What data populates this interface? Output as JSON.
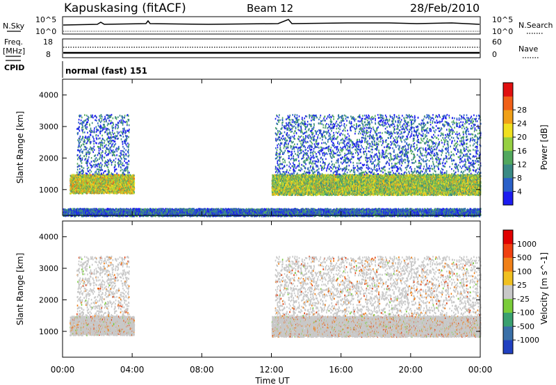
{
  "header": {
    "station": "Kapuskasing (fitACF)",
    "beam": "Beam 12",
    "date": "28/Feb/2010"
  },
  "param_panels": {
    "nsky_label": "N.Sky",
    "nsky_ticks": [
      "10^5",
      "10^0"
    ],
    "nsearch_label": "N.Search",
    "nsearch_ticks": [
      "10^5",
      "10^0"
    ],
    "freq_label_top": "Freq.",
    "freq_label_bot": "[MHz]",
    "freq_ticks": [
      "18",
      "8"
    ],
    "nave_label": "Nave",
    "nave_ticks": [
      "60",
      "0"
    ],
    "cpid_label": "CPID",
    "cpid_text": "normal (fast) 151"
  },
  "x_axis": {
    "label": "Time UT",
    "ticks": [
      "00:00",
      "04:00",
      "08:00",
      "12:00",
      "16:00",
      "20:00",
      "00:00"
    ]
  },
  "chart_data": [
    {
      "type": "heatmap",
      "title": "Power",
      "xlabel": "Time UT",
      "ylabel": "Slant Range [km]",
      "xlim": [
        0,
        24
      ],
      "ylim": [
        180,
        4500
      ],
      "y_ticks": [
        1000,
        2000,
        3000,
        4000
      ],
      "colorbar": {
        "label": "Power [dB]",
        "ticks": [
          "4",
          "8",
          "12",
          "16",
          "20",
          "24",
          "28"
        ],
        "min": 0,
        "max": 32,
        "colors": [
          "#1c1cf0",
          "#2a60c8",
          "#3a8a84",
          "#52a85e",
          "#96d042",
          "#f0e020",
          "#f0a018",
          "#f06018",
          "#e01010"
        ]
      },
      "echo_regions": [
        {
          "t_start": 0.4,
          "t_end": 4.1,
          "r_min": 900,
          "r_max": 1500,
          "power": 18
        },
        {
          "t_start": 0.8,
          "t_end": 3.8,
          "r_min": 1500,
          "r_max": 3400,
          "power": 6
        },
        {
          "t_start": 12.0,
          "t_end": 24.0,
          "r_min": 850,
          "r_max": 1500,
          "power": 16
        },
        {
          "t_start": 12.2,
          "t_end": 24.0,
          "r_min": 1500,
          "r_max": 3400,
          "power": 6
        },
        {
          "t_start": 0.0,
          "t_end": 24.0,
          "r_min": 180,
          "r_max": 420,
          "power": 6
        }
      ]
    },
    {
      "type": "heatmap",
      "title": "Velocity",
      "xlabel": "Time UT",
      "ylabel": "Slant Range [km]",
      "xlim": [
        0,
        24
      ],
      "ylim": [
        180,
        4500
      ],
      "y_ticks": [
        1000,
        2000,
        3000,
        4000
      ],
      "colorbar": {
        "label": "Velocity [m s^-1]",
        "ticks": [
          "1000",
          "500",
          "100",
          "25",
          "-25",
          "-100",
          "-500",
          "-1000"
        ],
        "colors": [
          "#2040c0",
          "#3a70a8",
          "#3aa070",
          "#7acc3a",
          "#c8c8c8",
          "#f0c020",
          "#f08018",
          "#f04010",
          "#e00000"
        ]
      },
      "echo_regions": [
        {
          "t_start": 0.4,
          "t_end": 4.1,
          "r_min": 900,
          "r_max": 1500,
          "velocity": 0
        },
        {
          "t_start": 0.8,
          "t_end": 3.8,
          "r_min": 1500,
          "r_max": 3400,
          "velocity": 0
        },
        {
          "t_start": 12.0,
          "t_end": 24.0,
          "r_min": 850,
          "r_max": 1500,
          "velocity": 0
        },
        {
          "t_start": 12.2,
          "t_end": 24.0,
          "r_min": 1500,
          "r_max": 3400,
          "velocity": 0
        }
      ]
    }
  ]
}
